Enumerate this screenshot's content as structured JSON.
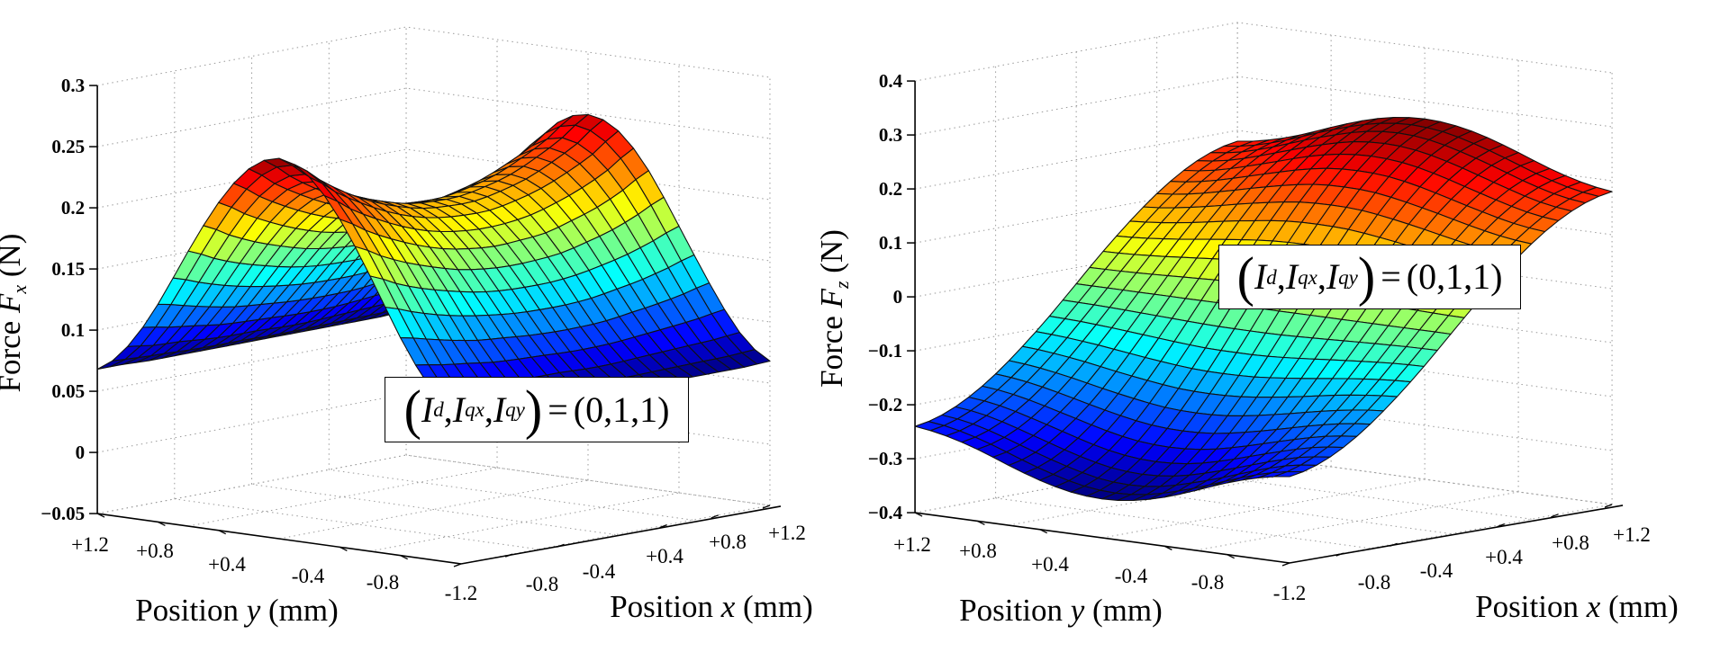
{
  "chart_data": [
    {
      "type": "surface3d",
      "id": "fx",
      "zlabel": "Force F_x (N)",
      "zlabel_parts": {
        "prefix": "Force ",
        "var": "F",
        "sub": "x",
        "suffix": " (N)"
      },
      "xlabel_parts": {
        "prefix": "Position ",
        "var": "x",
        "suffix": " (mm)"
      },
      "ylabel_parts": {
        "prefix": "Position ",
        "var": "y",
        "suffix": " (mm)"
      },
      "xlim": [
        -1.2,
        1.2
      ],
      "ylim": [
        -1.2,
        1.2
      ],
      "zlim": [
        -0.05,
        0.3
      ],
      "zticks": [
        -0.05,
        0,
        0.05,
        0.1,
        0.15,
        0.2,
        0.25,
        0.3
      ],
      "zticklabels": [
        "−0.05",
        "0",
        "0.05",
        "0.1",
        "0.15",
        "0.2",
        "0.25",
        "0.3"
      ],
      "xticks": [
        -1.2,
        -0.8,
        -0.4,
        0.4,
        0.8,
        1.2
      ],
      "xticklabels": [
        "-1.2",
        "-0.8",
        "-0.4",
        "+0.4",
        "+0.8",
        "+1.2"
      ],
      "yticks": [
        1.2,
        0.8,
        0.4,
        -0.4,
        -0.8
      ],
      "yticklabels": [
        "+1.2",
        "+0.8",
        "+0.4",
        "-0.4",
        "-0.8"
      ],
      "grid": true,
      "colormap": "jet",
      "legend": {
        "text": "(I_d, I_qx, I_qy) = (0,1,1)",
        "symbols": [
          "I",
          "I",
          "I"
        ],
        "subs": [
          "d",
          "qx",
          "qy"
        ],
        "value": "(0,1,1)",
        "placement": "lower-right"
      },
      "grid_x": [
        -1.2,
        -1.0,
        -0.8,
        -0.6,
        -0.4,
        -0.2,
        0,
        0.2,
        0.4,
        0.6,
        0.8,
        1.0,
        1.2
      ],
      "grid_y": [
        -1.2,
        -1.0,
        -0.8,
        -0.6,
        -0.4,
        -0.2,
        0,
        0.2,
        0.4,
        0.6,
        0.8,
        1.0,
        1.2
      ],
      "z": [
        [
          0.068,
          0.068,
          0.067,
          0.067,
          0.067,
          0.067,
          0.067,
          0.067,
          0.067,
          0.067,
          0.067,
          0.067,
          0.068
        ],
        [
          0.09,
          0.087,
          0.086,
          0.084,
          0.083,
          0.083,
          0.082,
          0.082,
          0.083,
          0.084,
          0.085,
          0.086,
          0.088
        ],
        [
          0.128,
          0.123,
          0.118,
          0.114,
          0.112,
          0.11,
          0.109,
          0.109,
          0.11,
          0.113,
          0.116,
          0.12,
          0.125
        ],
        [
          0.175,
          0.165,
          0.157,
          0.151,
          0.146,
          0.143,
          0.142,
          0.142,
          0.144,
          0.148,
          0.153,
          0.16,
          0.168
        ],
        [
          0.218,
          0.205,
          0.194,
          0.185,
          0.178,
          0.174,
          0.172,
          0.173,
          0.175,
          0.181,
          0.188,
          0.198,
          0.21
        ],
        [
          0.249,
          0.233,
          0.22,
          0.209,
          0.201,
          0.196,
          0.194,
          0.194,
          0.198,
          0.204,
          0.213,
          0.224,
          0.239
        ],
        [
          0.261,
          0.244,
          0.229,
          0.218,
          0.21,
          0.204,
          0.202,
          0.202,
          0.206,
          0.212,
          0.222,
          0.234,
          0.249
        ],
        [
          0.249,
          0.233,
          0.22,
          0.209,
          0.201,
          0.196,
          0.194,
          0.194,
          0.198,
          0.204,
          0.213,
          0.224,
          0.239
        ],
        [
          0.218,
          0.205,
          0.194,
          0.185,
          0.178,
          0.174,
          0.172,
          0.173,
          0.175,
          0.181,
          0.188,
          0.198,
          0.21
        ],
        [
          0.175,
          0.165,
          0.157,
          0.151,
          0.146,
          0.143,
          0.142,
          0.142,
          0.144,
          0.148,
          0.153,
          0.16,
          0.168
        ],
        [
          0.128,
          0.123,
          0.118,
          0.114,
          0.112,
          0.11,
          0.109,
          0.109,
          0.11,
          0.113,
          0.116,
          0.12,
          0.125
        ],
        [
          0.09,
          0.087,
          0.086,
          0.084,
          0.083,
          0.083,
          0.082,
          0.082,
          0.083,
          0.084,
          0.085,
          0.086,
          0.088
        ],
        [
          0.068,
          0.068,
          0.067,
          0.067,
          0.067,
          0.067,
          0.067,
          0.067,
          0.067,
          0.067,
          0.067,
          0.067,
          0.068
        ]
      ]
    },
    {
      "type": "surface3d",
      "id": "fz",
      "zlabel": "Force F_z (N)",
      "zlabel_parts": {
        "prefix": "Force ",
        "var": "F",
        "sub": "z",
        "suffix": " (N)"
      },
      "xlabel_parts": {
        "prefix": "Position ",
        "var": "x",
        "suffix": " (mm)"
      },
      "ylabel_parts": {
        "prefix": "Position ",
        "var": "y",
        "suffix": " (mm)"
      },
      "xlim": [
        -1.2,
        1.2
      ],
      "ylim": [
        -1.2,
        1.2
      ],
      "zlim": [
        -0.4,
        0.4
      ],
      "zticks": [
        -0.4,
        -0.3,
        -0.2,
        -0.1,
        0,
        0.1,
        0.2,
        0.3,
        0.4
      ],
      "zticklabels": [
        "−0.4",
        "−0.3",
        "−0.2",
        "−0.1",
        "0",
        "0.1",
        "0.2",
        "0.3",
        "0.4"
      ],
      "xticks": [
        -1.2,
        -0.8,
        -0.4,
        0.4,
        0.8,
        1.2
      ],
      "xticklabels": [
        "-1.2",
        "-0.8",
        "-0.4",
        "+0.4",
        "+0.8",
        "+1.2"
      ],
      "yticks": [
        1.2,
        0.8,
        0.4,
        -0.4,
        -0.8
      ],
      "yticklabels": [
        "+1.2",
        "+0.8",
        "+0.4",
        "-0.4",
        "-0.8"
      ],
      "grid": true,
      "colormap": "jet",
      "legend": {
        "text": "(I_d, I_qx, I_qy) = (0,1,1)",
        "symbols": [
          "I",
          "I",
          "I"
        ],
        "subs": [
          "d",
          "qx",
          "qy"
        ],
        "value": "(0,1,1)",
        "placement": "upper-right"
      },
      "grid_x": [
        -1.2,
        -1.0,
        -0.8,
        -0.6,
        -0.4,
        -0.2,
        0,
        0.2,
        0.4,
        0.6,
        0.8,
        1.0,
        1.2
      ],
      "grid_y": [
        -1.2,
        -1.0,
        -0.8,
        -0.6,
        -0.4,
        -0.2,
        0,
        0.2,
        0.4,
        0.6,
        0.8,
        1.0,
        1.2
      ],
      "z": [
        [
          -0.24,
          -0.228,
          -0.204,
          -0.17,
          -0.128,
          -0.081,
          -0.03,
          0.021,
          0.068,
          0.11,
          0.144,
          0.168,
          0.18
        ],
        [
          -0.25,
          -0.237,
          -0.212,
          -0.177,
          -0.133,
          -0.083,
          -0.03,
          0.023,
          0.073,
          0.117,
          0.152,
          0.177,
          0.19
        ],
        [
          -0.267,
          -0.254,
          -0.227,
          -0.189,
          -0.141,
          -0.087,
          -0.03,
          0.027,
          0.081,
          0.129,
          0.167,
          0.194,
          0.207
        ],
        [
          -0.289,
          -0.274,
          -0.244,
          -0.203,
          -0.151,
          -0.092,
          -0.03,
          0.032,
          0.091,
          0.143,
          0.184,
          0.214,
          0.229
        ],
        [
          -0.309,
          -0.292,
          -0.261,
          -0.216,
          -0.16,
          -0.097,
          -0.03,
          0.037,
          0.1,
          0.156,
          0.201,
          0.232,
          0.249
        ],
        [
          -0.323,
          -0.306,
          -0.273,
          -0.226,
          -0.167,
          -0.101,
          -0.03,
          0.041,
          0.107,
          0.166,
          0.213,
          0.246,
          0.263
        ],
        [
          -0.328,
          -0.311,
          -0.277,
          -0.229,
          -0.169,
          -0.102,
          -0.03,
          0.042,
          0.109,
          0.169,
          0.217,
          0.251,
          0.268
        ],
        [
          -0.323,
          -0.306,
          -0.273,
          -0.226,
          -0.167,
          -0.101,
          -0.03,
          0.041,
          0.107,
          0.166,
          0.213,
          0.246,
          0.263
        ],
        [
          -0.309,
          -0.292,
          -0.261,
          -0.216,
          -0.16,
          -0.097,
          -0.03,
          0.037,
          0.1,
          0.156,
          0.201,
          0.232,
          0.249
        ],
        [
          -0.289,
          -0.274,
          -0.244,
          -0.203,
          -0.151,
          -0.092,
          -0.03,
          0.032,
          0.091,
          0.143,
          0.184,
          0.214,
          0.229
        ],
        [
          -0.267,
          -0.254,
          -0.227,
          -0.189,
          -0.141,
          -0.087,
          -0.03,
          0.027,
          0.081,
          0.129,
          0.167,
          0.194,
          0.207
        ],
        [
          -0.25,
          -0.237,
          -0.212,
          -0.177,
          -0.133,
          -0.083,
          -0.03,
          0.023,
          0.073,
          0.117,
          0.152,
          0.177,
          0.19
        ],
        [
          -0.24,
          -0.228,
          -0.204,
          -0.17,
          -0.128,
          -0.081,
          -0.03,
          0.021,
          0.068,
          0.11,
          0.144,
          0.168,
          0.18
        ]
      ]
    }
  ]
}
